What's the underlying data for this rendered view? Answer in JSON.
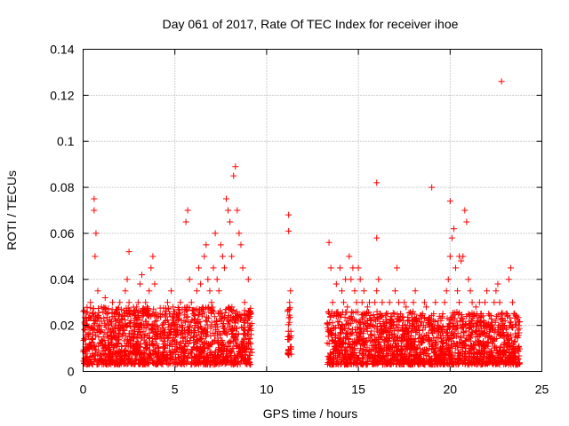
{
  "chart_data": {
    "type": "scatter",
    "title": "Day 061 of 2017, Rate Of TEC Index for receiver ihoe",
    "xlabel": "GPS time / hours",
    "ylabel": "ROTI / TECUs",
    "xlim": [
      0,
      25
    ],
    "ylim": [
      0,
      0.14
    ],
    "xticks": [
      0,
      5,
      10,
      15,
      20,
      25
    ],
    "xtick_labels": [
      "0",
      "5",
      "10",
      "15",
      "20",
      "25"
    ],
    "yticks": [
      0,
      0.02,
      0.04,
      0.06,
      0.08,
      0.1,
      0.12,
      0.14
    ],
    "ytick_labels": [
      "0",
      "0.02",
      "0.04",
      "0.06",
      "0.08",
      "0.1",
      "0.12",
      "0.14"
    ],
    "grid": true,
    "marker": "+",
    "color": "#ff0000",
    "series": [
      {
        "name": "ROTI",
        "x": [
          0.1,
          0.2,
          0.3,
          0.4,
          0.5,
          0.6,
          0.6,
          0.65,
          0.7,
          0.8,
          0.9,
          1.0,
          1.1,
          1.2,
          1.3,
          1.4,
          1.5,
          1.6,
          1.7,
          1.8,
          1.9,
          2.0,
          2.1,
          2.2,
          2.3,
          2.4,
          2.5,
          2.5,
          2.6,
          2.7,
          2.8,
          2.9,
          3.0,
          3.1,
          3.2,
          3.3,
          3.4,
          3.5,
          3.6,
          3.7,
          3.8,
          3.9,
          4.0,
          4.1,
          4.2,
          4.3,
          4.4,
          4.5,
          4.6,
          4.7,
          4.8,
          4.9,
          5.0,
          5.1,
          5.2,
          5.3,
          5.4,
          5.5,
          5.6,
          5.7,
          5.8,
          5.9,
          6.0,
          6.1,
          6.2,
          6.3,
          6.4,
          6.5,
          6.6,
          6.7,
          6.8,
          6.9,
          7.0,
          7.1,
          7.2,
          7.3,
          7.4,
          7.5,
          7.6,
          7.7,
          7.8,
          7.9,
          8.0,
          8.1,
          8.2,
          8.3,
          8.4,
          8.5,
          8.6,
          8.7,
          8.8,
          8.9,
          9.0,
          9.1,
          11.2,
          11.2,
          11.25,
          11.3,
          13.4,
          13.5,
          13.6,
          13.7,
          13.8,
          13.9,
          14.0,
          14.1,
          14.2,
          14.3,
          14.4,
          14.5,
          14.6,
          14.7,
          14.8,
          14.9,
          15.0,
          15.1,
          15.2,
          15.3,
          15.4,
          15.5,
          15.6,
          15.7,
          15.8,
          15.9,
          16.0,
          16.1,
          16.2,
          16.3,
          16.4,
          16.5,
          16.6,
          16.7,
          16.8,
          16.9,
          17.0,
          17.1,
          17.2,
          17.3,
          17.4,
          17.5,
          17.6,
          17.7,
          17.8,
          17.9,
          18.0,
          18.1,
          18.2,
          18.3,
          18.4,
          18.5,
          18.6,
          18.7,
          18.8,
          18.9,
          19.0,
          19.1,
          19.2,
          19.3,
          19.4,
          19.5,
          19.6,
          19.7,
          19.8,
          19.9,
          20.0,
          20.1,
          20.2,
          20.3,
          20.4,
          20.5,
          20.6,
          20.7,
          20.8,
          20.9,
          21.0,
          21.1,
          21.2,
          21.3,
          21.4,
          21.5,
          21.6,
          21.7,
          21.8,
          21.9,
          22.0,
          22.1,
          22.2,
          22.3,
          22.4,
          22.5,
          22.6,
          22.7,
          22.8,
          22.9,
          23.0,
          23.1,
          23.2,
          23.3,
          23.4,
          23.5,
          23.6,
          23.7,
          16.0,
          16.0,
          19.0,
          20.0,
          20.5,
          22.8,
          1.0,
          7.0,
          8.2,
          8.4,
          8.3,
          8.5,
          13.4,
          14.8,
          17.0,
          21.0
        ],
        "y": [
          0.018,
          0.022,
          0.015,
          0.03,
          0.025,
          0.075,
          0.07,
          0.05,
          0.06,
          0.035,
          0.02,
          0.028,
          0.015,
          0.032,
          0.025,
          0.02,
          0.018,
          0.03,
          0.025,
          0.022,
          0.027,
          0.03,
          0.02,
          0.018,
          0.035,
          0.04,
          0.052,
          0.03,
          0.022,
          0.025,
          0.018,
          0.02,
          0.03,
          0.038,
          0.042,
          0.025,
          0.03,
          0.02,
          0.035,
          0.045,
          0.05,
          0.038,
          0.022,
          0.018,
          0.025,
          0.02,
          0.018,
          0.022,
          0.03,
          0.025,
          0.035,
          0.028,
          0.02,
          0.018,
          0.025,
          0.03,
          0.02,
          0.022,
          0.065,
          0.07,
          0.04,
          0.03,
          0.025,
          0.02,
          0.035,
          0.045,
          0.038,
          0.025,
          0.05,
          0.055,
          0.04,
          0.035,
          0.03,
          0.045,
          0.06,
          0.04,
          0.035,
          0.055,
          0.05,
          0.045,
          0.075,
          0.07,
          0.065,
          0.05,
          0.085,
          0.089,
          0.07,
          0.06,
          0.055,
          0.045,
          0.03,
          0.025,
          0.04,
          0.02,
          0.068,
          0.061,
          0.03,
          0.035,
          0.056,
          0.045,
          0.03,
          0.025,
          0.038,
          0.02,
          0.045,
          0.035,
          0.03,
          0.04,
          0.028,
          0.05,
          0.04,
          0.045,
          0.035,
          0.03,
          0.045,
          0.04,
          0.03,
          0.035,
          0.025,
          0.028,
          0.03,
          0.022,
          0.02,
          0.03,
          0.035,
          0.04,
          0.025,
          0.03,
          0.02,
          0.018,
          0.025,
          0.03,
          0.022,
          0.02,
          0.035,
          0.045,
          0.03,
          0.025,
          0.02,
          0.03,
          0.028,
          0.022,
          0.02,
          0.025,
          0.03,
          0.035,
          0.022,
          0.018,
          0.02,
          0.025,
          0.03,
          0.028,
          0.022,
          0.02,
          0.018,
          0.025,
          0.03,
          0.02,
          0.018,
          0.022,
          0.025,
          0.03,
          0.035,
          0.04,
          0.05,
          0.058,
          0.062,
          0.045,
          0.035,
          0.03,
          0.048,
          0.05,
          0.07,
          0.065,
          0.04,
          0.035,
          0.03,
          0.025,
          0.028,
          0.022,
          0.03,
          0.025,
          0.02,
          0.03,
          0.035,
          0.025,
          0.02,
          0.018,
          0.03,
          0.035,
          0.038,
          0.03,
          0.025,
          0.02,
          0.022,
          0.025,
          0.04,
          0.045,
          0.03,
          0.025,
          0.02,
          0.018,
          0.082,
          0.058,
          0.08,
          0.074,
          0.05,
          0.126,
          0.012,
          0.012,
          0.01,
          0.012,
          0.015,
          0.01,
          0.012,
          0.01,
          0.012,
          0.01
        ],
        "bands": [
          {
            "x_start": 0.0,
            "x_end": 9.2,
            "y_low": 0.003,
            "y_high": 0.028
          },
          {
            "x_start": 11.15,
            "x_end": 11.35,
            "y_low": 0.007,
            "y_high": 0.03
          },
          {
            "x_start": 13.3,
            "x_end": 23.8,
            "y_low": 0.003,
            "y_high": 0.026
          }
        ]
      }
    ]
  }
}
